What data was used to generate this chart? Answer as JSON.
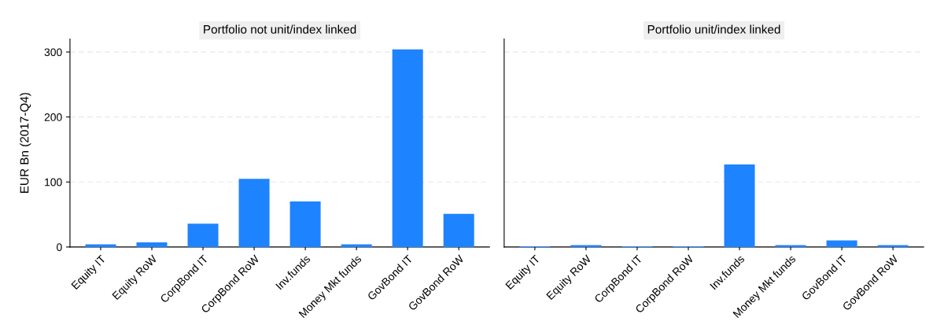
{
  "chart_data": [
    {
      "type": "bar",
      "title": "Portfolio not unit/index linked",
      "ylabel": "EUR Bn (2017-Q4)",
      "categories": [
        "Equity IT",
        "Equity RoW",
        "CorpBond IT",
        "CorpBond RoW",
        "Inv.funds",
        "Money Mkt funds",
        "GovBond IT",
        "GovBond RoW"
      ],
      "values": [
        4,
        7,
        36,
        105,
        70,
        4,
        304,
        51
      ],
      "color": "#1e83ff",
      "ylim": [
        0,
        320
      ],
      "yticks": [
        0,
        100,
        200,
        300
      ],
      "grid": "y"
    },
    {
      "type": "bar",
      "title": "Portfolio unit/index linked",
      "categories": [
        "Equity IT",
        "Equity RoW",
        "CorpBond IT",
        "CorpBond RoW",
        "Inv.funds",
        "Money Mkt funds",
        "GovBond IT",
        "GovBond RoW"
      ],
      "values": [
        1,
        3,
        1,
        1,
        127,
        3,
        10,
        3
      ],
      "color": "#1e83ff",
      "ylim": [
        0,
        320
      ],
      "yticks": [
        0,
        100,
        200,
        300
      ],
      "grid": "y",
      "tick_labels": "x"
    }
  ]
}
